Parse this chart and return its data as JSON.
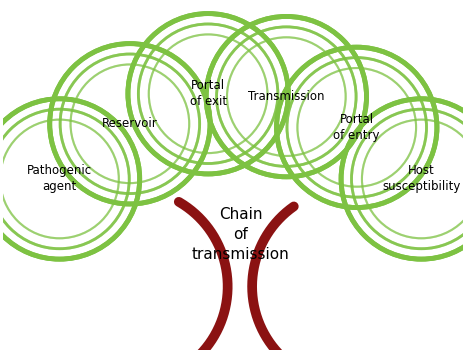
{
  "background_color": "#ffffff",
  "circle_color": "#7dc242",
  "arrow_color": "#8b1212",
  "center_label": "Chain\nof\ntransmission",
  "circle_labels": [
    "Pathogenic\nagent",
    "Reservoir",
    "Portal\nof exit",
    "Transmission",
    "Portal\nof entry",
    "Host\nsusceptibility"
  ],
  "font_size_circle": 8.5,
  "font_size_center": 11,
  "figsize": [
    4.71,
    3.54
  ],
  "dpi": 100
}
